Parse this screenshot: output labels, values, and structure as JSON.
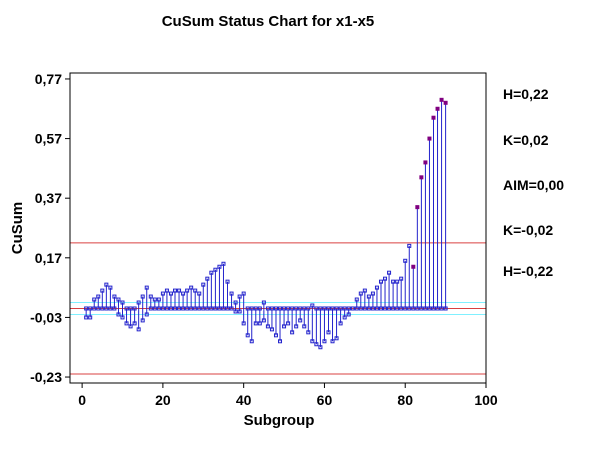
{
  "chart_data": {
    "type": "scatter",
    "title": "CuSum Status Chart for x1-x5",
    "xlabel": "Subgroup",
    "ylabel": "CuSum",
    "xlim": [
      -3,
      100
    ],
    "ylim": [
      -0.25,
      0.79
    ],
    "x_ticks": [
      0,
      20,
      40,
      60,
      80,
      100
    ],
    "x_tick_labels": [
      "0",
      "20",
      "40",
      "60",
      "80",
      "100"
    ],
    "y_ticks": [
      -0.23,
      -0.03,
      0.17,
      0.37,
      0.57,
      0.77
    ],
    "y_tick_labels": [
      "-0,23",
      "-0,03",
      "0,17",
      "0,37",
      "0,57",
      "0,77"
    ],
    "grid": false,
    "control_lines": [
      {
        "label": "H=0,22",
        "value": 0.22,
        "color": "#d94040"
      },
      {
        "label": "K=0,02",
        "value": 0.02,
        "color": "#80f0ff"
      },
      {
        "label": "AIM=0,00",
        "value": 0.0,
        "color": "#d94040"
      },
      {
        "label": "K=-0,02",
        "value": -0.02,
        "color": "#80f0ff"
      },
      {
        "label": "H=-0,22",
        "value": -0.22,
        "color": "#d94040"
      }
    ],
    "colors": {
      "points": "#2222cc",
      "out_of_control": "#800080",
      "frame": "#000000"
    },
    "x": [
      1,
      2,
      3,
      4,
      5,
      6,
      7,
      8,
      9,
      10,
      11,
      12,
      13,
      14,
      15,
      16,
      17,
      18,
      19,
      20,
      21,
      22,
      23,
      24,
      25,
      26,
      27,
      28,
      29,
      30,
      31,
      32,
      33,
      34,
      35,
      36,
      37,
      38,
      39,
      40,
      41,
      42,
      43,
      44,
      45,
      46,
      47,
      48,
      49,
      50,
      51,
      52,
      53,
      54,
      55,
      56,
      57,
      58,
      59,
      60,
      61,
      62,
      63,
      64,
      65,
      66,
      67,
      68,
      69,
      70,
      71,
      72,
      73,
      74,
      75,
      76,
      77,
      78,
      79,
      80,
      81,
      82,
      83,
      84,
      85,
      86,
      87,
      88,
      89,
      90
    ],
    "series": [
      {
        "values": [
          0.0,
          0.0,
          0.03,
          0.04,
          0.06,
          0.08,
          0.07,
          0.04,
          0.03,
          0.02,
          0.0,
          0.0,
          0.0,
          0.02,
          0.04,
          0.07,
          0.04,
          0.03,
          0.03,
          0.05,
          0.06,
          0.05,
          0.06,
          0.06,
          0.05,
          0.06,
          0.07,
          0.06,
          0.05,
          0.08,
          0.1,
          0.12,
          0.13,
          0.14,
          0.15,
          0.09,
          0.05,
          0.02,
          0.04,
          0.05,
          0.0,
          0.0,
          0.0,
          0.0,
          0.02,
          0.0,
          0.0,
          0.0,
          0.0,
          0.0,
          0.0,
          0.0,
          0.0,
          0.0,
          0.0,
          0.0,
          0.01,
          0.0,
          0.0,
          0.0,
          0.0,
          0.0,
          0.0,
          0.0,
          0.0,
          0.0,
          0.0,
          0.03,
          0.05,
          0.06,
          0.04,
          0.05,
          0.07,
          0.09,
          0.1,
          0.12,
          0.09,
          0.09,
          0.1,
          0.16,
          0.21,
          0.14,
          0.34,
          0.44,
          0.49,
          0.57,
          0.64,
          0.67,
          0.7,
          0.69
        ]
      },
      {
        "values": [
          -0.03,
          -0.03,
          0.0,
          0.0,
          0.0,
          0.0,
          0.0,
          0.0,
          -0.02,
          -0.03,
          -0.05,
          -0.06,
          -0.05,
          -0.07,
          -0.04,
          -0.02,
          0.0,
          0.0,
          0.0,
          0.0,
          0.0,
          0.0,
          0.0,
          0.0,
          0.0,
          0.0,
          0.0,
          0.0,
          0.0,
          0.0,
          0.0,
          0.0,
          0.0,
          0.0,
          0.0,
          0.0,
          0.0,
          -0.01,
          -0.01,
          -0.05,
          -0.09,
          -0.11,
          -0.05,
          -0.05,
          -0.04,
          -0.06,
          -0.07,
          -0.09,
          -0.11,
          -0.06,
          -0.05,
          -0.08,
          -0.06,
          -0.04,
          -0.06,
          -0.08,
          -0.11,
          -0.12,
          -0.13,
          -0.11,
          -0.08,
          -0.11,
          -0.1,
          -0.05,
          -0.03,
          -0.02,
          0.0,
          0.0,
          0.0,
          0.0,
          0.0,
          0.0,
          0.0,
          0.0,
          0.0,
          0.0,
          0.0,
          0.0,
          0.0,
          0.0,
          0.0,
          0.0,
          0.0,
          0.0,
          0.0,
          0.0,
          0.0,
          0.0,
          0.0,
          0.0
        ]
      }
    ],
    "out_of_control_from_x": 82
  }
}
